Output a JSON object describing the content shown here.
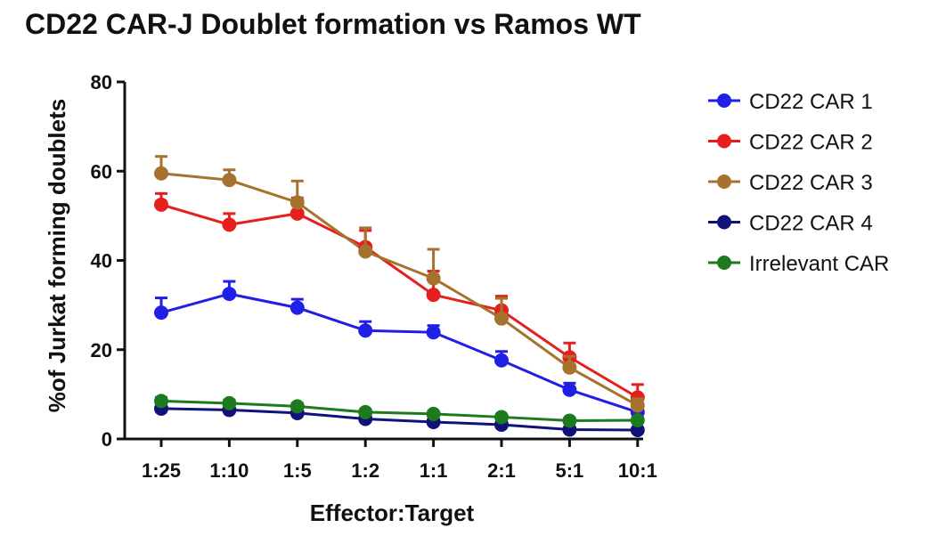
{
  "chart_data": {
    "type": "line",
    "title": "CD22 CAR-J Doublet formation vs Ramos  WT",
    "xlabel": "Effector:Target",
    "ylabel": "%of Jurkat forming doublets",
    "categories": [
      "1:25",
      "1:10",
      "1:5",
      "1:2",
      "1:1",
      "2:1",
      "5:1",
      "10:1"
    ],
    "ylim": [
      0,
      80
    ],
    "yticks": [
      0,
      20,
      40,
      60,
      80
    ],
    "grid": false,
    "legend_position": "right",
    "series": [
      {
        "name": "CD22 CAR 1",
        "color": "#1f1fe6",
        "values": [
          28.3,
          32.5,
          29.4,
          24.3,
          23.9,
          17.6,
          11.0,
          6.0
        ],
        "errors": [
          3.3,
          2.8,
          1.9,
          2.0,
          1.5,
          2.0,
          1.5,
          1.0
        ]
      },
      {
        "name": "CD22 CAR 2",
        "color": "#e61e1e",
        "values": [
          52.5,
          48.0,
          50.5,
          43.0,
          32.3,
          28.8,
          18.3,
          9.3
        ],
        "errors": [
          2.5,
          2.5,
          3.5,
          3.7,
          5.3,
          3.2,
          3.2,
          2.9
        ]
      },
      {
        "name": "CD22 CAR 3",
        "color": "#a6732e",
        "values": [
          59.5,
          58.0,
          53.0,
          42.0,
          36.0,
          27.0,
          16.0,
          7.5
        ],
        "errors": [
          3.8,
          2.3,
          4.8,
          5.3,
          6.5,
          4.5,
          2.5,
          1.5
        ]
      },
      {
        "name": "CD22 CAR 4",
        "color": "#11117a",
        "values": [
          6.8,
          6.5,
          5.8,
          4.5,
          3.8,
          3.2,
          2.1,
          2.0
        ],
        "errors": [
          0.8,
          0.8,
          0.7,
          0.6,
          0.6,
          0.5,
          0.4,
          0.4
        ]
      },
      {
        "name": "Irrelevant CAR",
        "color": "#1e7a1e",
        "values": [
          8.5,
          8.0,
          7.3,
          6.0,
          5.6,
          4.9,
          4.1,
          4.2
        ],
        "errors": [
          0.8,
          0.7,
          0.7,
          0.6,
          0.6,
          0.5,
          0.5,
          0.5
        ]
      }
    ]
  }
}
